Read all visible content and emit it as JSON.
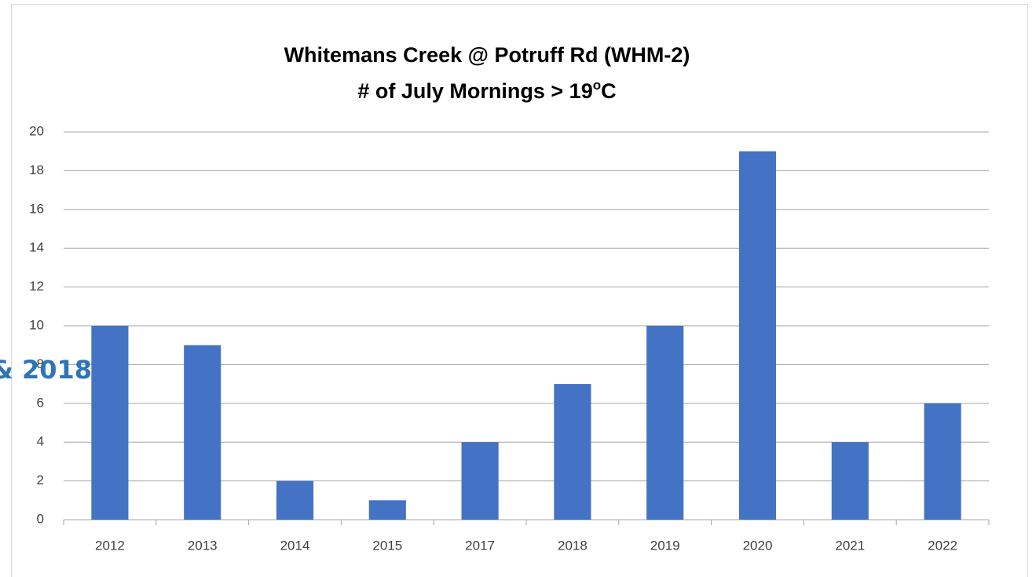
{
  "chart_data": {
    "type": "bar",
    "title": "Whitemans Creek @ Potruff Rd (WHM-2)",
    "subtitle": [
      "# of July Mornings > 19",
      "o",
      "C"
    ],
    "annotation": "& 2018",
    "categories": [
      "2012",
      "2013",
      "2014",
      "2015",
      "2017",
      "2018",
      "2019",
      "2020",
      "2021",
      "2022"
    ],
    "values": [
      10,
      9,
      2,
      1,
      4,
      7,
      10,
      19,
      4,
      6
    ],
    "color": "#4472c4",
    "ylim": [
      0,
      20
    ],
    "yticks": [
      0,
      2,
      4,
      6,
      8,
      10,
      12,
      14,
      16,
      18,
      20
    ],
    "grid": true
  }
}
